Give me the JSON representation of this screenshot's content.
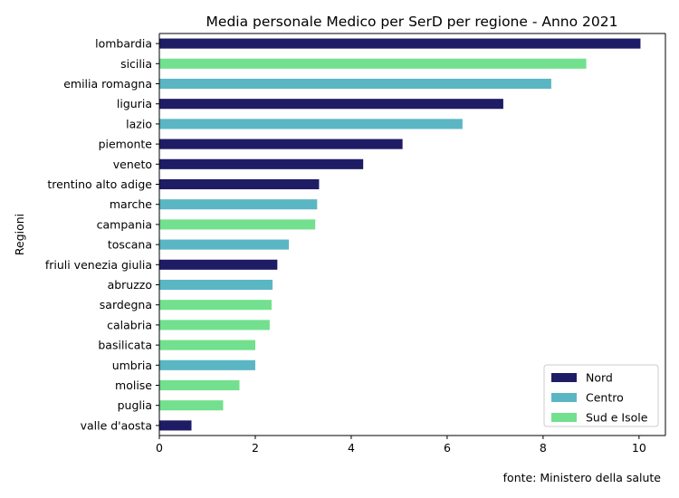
{
  "chart_data": {
    "type": "bar",
    "orientation": "horizontal",
    "title": "Media personale Medico per SerD per regione - Anno 2021",
    "ylabel": "Regioni",
    "xlabel": "",
    "xlim": [
      0,
      10.55
    ],
    "xticks": [
      0,
      2,
      4,
      6,
      8,
      10
    ],
    "grid": false,
    "legend_position": "bottom-right",
    "source_note": "fonte: Ministero della salute",
    "groups": [
      {
        "name": "Nord",
        "color": "#1f1c66"
      },
      {
        "name": "Centro",
        "color": "#5bb6c4"
      },
      {
        "name": "Sud e Isole",
        "color": "#72e08e"
      }
    ],
    "bars": [
      {
        "category": "lombardia",
        "value": 10.03,
        "group": "Nord"
      },
      {
        "category": "sicilia",
        "value": 8.9,
        "group": "Sud e Isole"
      },
      {
        "category": "emilia romagna",
        "value": 8.17,
        "group": "Centro"
      },
      {
        "category": "liguria",
        "value": 7.17,
        "group": "Nord"
      },
      {
        "category": "lazio",
        "value": 6.32,
        "group": "Centro"
      },
      {
        "category": "piemonte",
        "value": 5.07,
        "group": "Nord"
      },
      {
        "category": "veneto",
        "value": 4.25,
        "group": "Nord"
      },
      {
        "category": "trentino alto adige",
        "value": 3.33,
        "group": "Nord"
      },
      {
        "category": "marche",
        "value": 3.29,
        "group": "Centro"
      },
      {
        "category": "campania",
        "value": 3.25,
        "group": "Sud e Isole"
      },
      {
        "category": "toscana",
        "value": 2.7,
        "group": "Centro"
      },
      {
        "category": "friuli venezia giulia",
        "value": 2.46,
        "group": "Nord"
      },
      {
        "category": "abruzzo",
        "value": 2.36,
        "group": "Centro"
      },
      {
        "category": "sardegna",
        "value": 2.34,
        "group": "Sud e Isole"
      },
      {
        "category": "calabria",
        "value": 2.3,
        "group": "Sud e Isole"
      },
      {
        "category": "basilicata",
        "value": 2.0,
        "group": "Sud e Isole"
      },
      {
        "category": "umbria",
        "value": 2.0,
        "group": "Centro"
      },
      {
        "category": "molise",
        "value": 1.67,
        "group": "Sud e Isole"
      },
      {
        "category": "puglia",
        "value": 1.33,
        "group": "Sud e Isole"
      },
      {
        "category": "valle d'aosta",
        "value": 0.67,
        "group": "Nord"
      }
    ]
  }
}
